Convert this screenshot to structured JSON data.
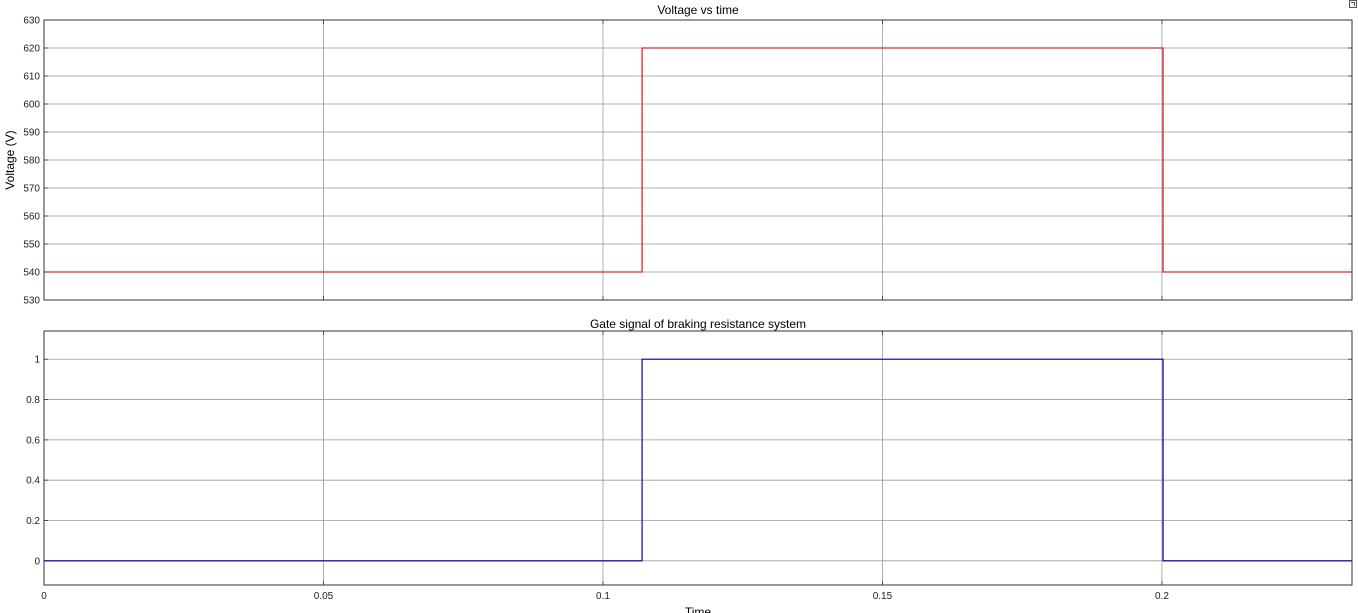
{
  "chart_data": [
    {
      "type": "line",
      "title": "Voltage vs time",
      "xlabel": "",
      "ylabel": "Voltage (V)",
      "xlim": [
        0,
        0.234
      ],
      "ylim": [
        530,
        630
      ],
      "xticks": [
        0,
        0.05,
        0.1,
        0.15,
        0.2
      ],
      "yticks": [
        530,
        540,
        550,
        560,
        570,
        580,
        590,
        600,
        610,
        620,
        630
      ],
      "grid": true,
      "series": [
        {
          "color": "#e8252a",
          "x": [
            0,
            0.107,
            0.107,
            0.2002,
            0.2002,
            0.234
          ],
          "y": [
            540,
            540,
            620,
            620,
            540,
            540
          ]
        }
      ]
    },
    {
      "type": "line",
      "title": "Gate signal of braking resistance system",
      "xlabel": "Time",
      "ylabel": "",
      "xlim": [
        0,
        0.234
      ],
      "ylim": [
        -0.12,
        1.14
      ],
      "xticks": [
        0,
        0.05,
        0.1,
        0.15,
        0.2
      ],
      "xticklabels": [
        "0",
        "0.05",
        "0.1",
        "0.15",
        "0.2"
      ],
      "yticks": [
        0,
        0.2,
        0.4,
        0.6,
        0.8,
        1
      ],
      "grid": true,
      "series": [
        {
          "color": "#1a1aa6",
          "x": [
            0,
            0.107,
            0.107,
            0.2002,
            0.2002,
            0.234
          ],
          "y": [
            0,
            0,
            1,
            1,
            0,
            0
          ]
        }
      ]
    }
  ],
  "icons": {
    "corner": "expand-icon"
  }
}
